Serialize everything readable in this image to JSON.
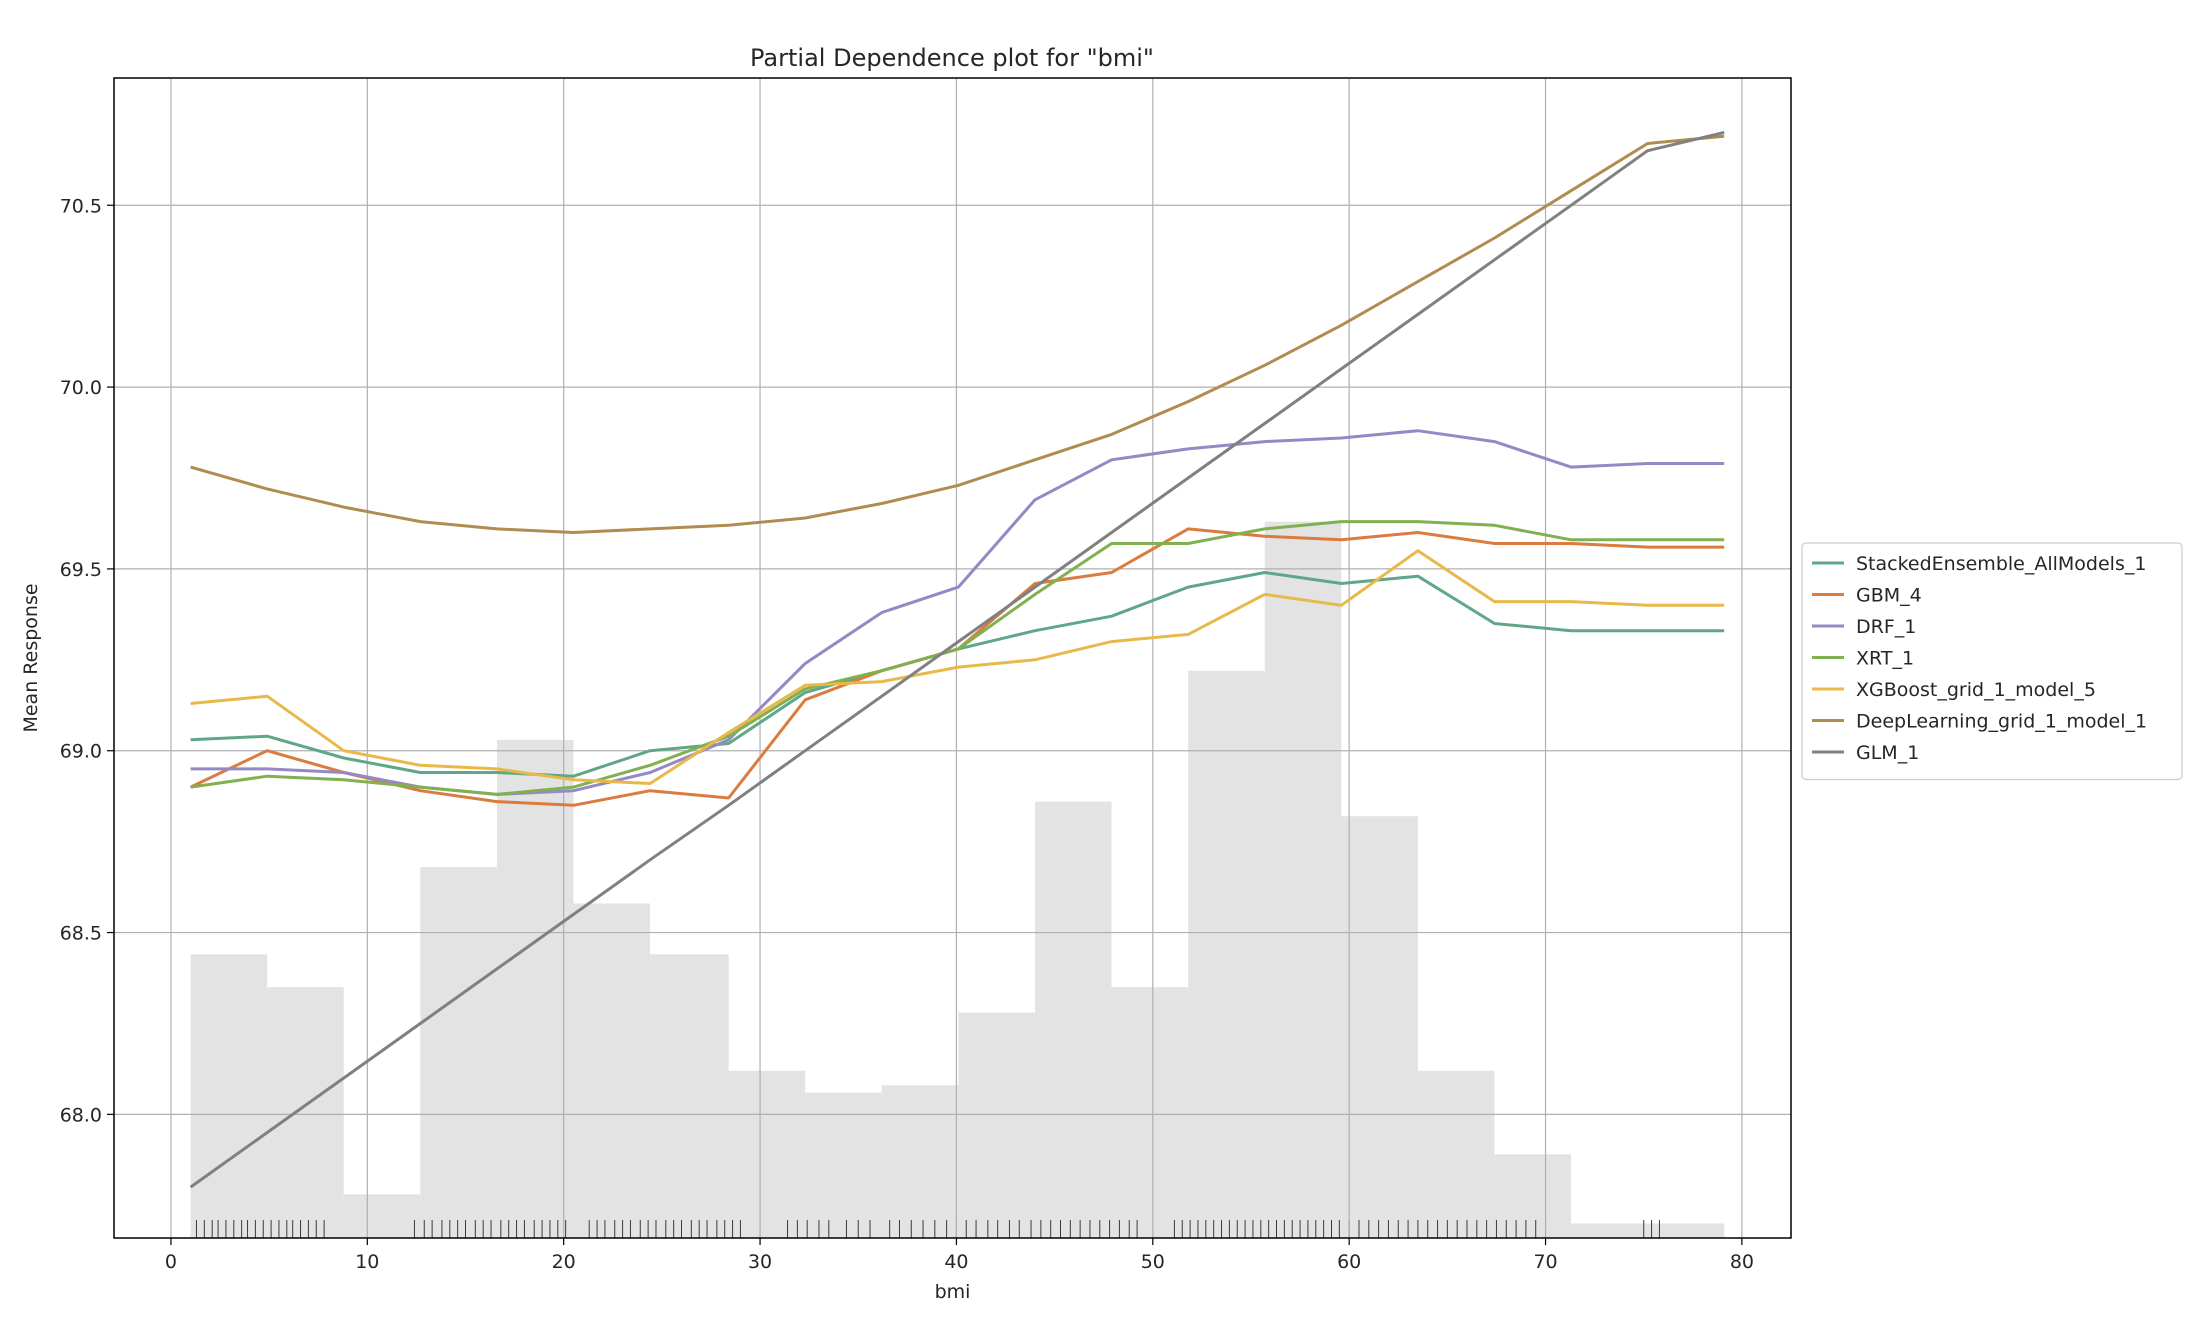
{
  "chart_data": {
    "type": "line",
    "title": "Partial Dependence plot for \"bmi\"",
    "xlabel": "bmi",
    "ylabel": "Mean Response",
    "xlim": [
      -2.9,
      82.5
    ],
    "ylim": [
      67.66,
      70.85
    ],
    "xticks": [
      "0",
      "10",
      "20",
      "30",
      "40",
      "50",
      "60",
      "70",
      "80"
    ],
    "yticks": [
      "68.0",
      "68.5",
      "69.0",
      "69.5",
      "70.0",
      "70.5"
    ],
    "grid": true,
    "legend_position": "right",
    "x": [
      1.0,
      4.9,
      8.8,
      12.7,
      16.6,
      20.5,
      24.4,
      28.4,
      32.3,
      36.2,
      40.1,
      44.0,
      47.9,
      51.8,
      55.7,
      59.6,
      63.5,
      67.4,
      71.3,
      75.2,
      79.1
    ],
    "series": [
      {
        "name": "StackedEnsemble_AllModels_1",
        "color": "#5fa787",
        "values": [
          69.03,
          69.04,
          68.98,
          68.94,
          68.94,
          68.93,
          69.0,
          69.02,
          69.16,
          69.22,
          69.28,
          69.33,
          69.37,
          69.45,
          69.49,
          69.46,
          69.48,
          69.35,
          69.33,
          69.33,
          69.33
        ]
      },
      {
        "name": "GBM_4",
        "color": "#db7b40",
        "values": [
          68.9,
          69.0,
          68.94,
          68.89,
          68.86,
          68.85,
          68.89,
          68.87,
          69.14,
          69.22,
          69.28,
          69.46,
          69.49,
          69.61,
          69.59,
          69.58,
          69.6,
          69.57,
          69.57,
          69.56,
          69.56
        ]
      },
      {
        "name": "DRF_1",
        "color": "#9489c4",
        "values": [
          68.95,
          68.95,
          68.94,
          68.9,
          68.88,
          68.89,
          68.94,
          69.03,
          69.24,
          69.38,
          69.45,
          69.69,
          69.8,
          69.83,
          69.85,
          69.86,
          69.88,
          69.85,
          69.78,
          69.79,
          69.79
        ]
      },
      {
        "name": "XRT_1",
        "color": "#80b050",
        "values": [
          68.9,
          68.93,
          68.92,
          68.9,
          68.88,
          68.9,
          68.96,
          69.04,
          69.17,
          69.22,
          69.28,
          69.43,
          69.57,
          69.57,
          69.61,
          69.63,
          69.63,
          69.62,
          69.58,
          69.58,
          69.58
        ]
      },
      {
        "name": "XGBoost_grid_1_model_5",
        "color": "#e8b94a",
        "values": [
          69.13,
          69.15,
          69.0,
          68.96,
          68.95,
          68.92,
          68.91,
          69.05,
          69.18,
          69.19,
          69.23,
          69.25,
          69.3,
          69.32,
          69.43,
          69.4,
          69.55,
          69.41,
          69.41,
          69.4,
          69.4
        ]
      },
      {
        "name": "DeepLearning_grid_1_model_1",
        "color": "#b08c50",
        "values": [
          69.78,
          69.72,
          69.67,
          69.63,
          69.61,
          69.6,
          69.61,
          69.62,
          69.64,
          69.68,
          69.73,
          69.8,
          69.87,
          69.96,
          70.06,
          70.17,
          70.29,
          70.41,
          70.54,
          70.67,
          70.69
        ]
      },
      {
        "name": "GLM_1",
        "color": "#808080",
        "values": [
          67.8,
          67.95,
          68.1,
          68.25,
          68.4,
          68.55,
          68.7,
          68.85,
          69.0,
          69.15,
          69.3,
          69.45,
          69.6,
          69.75,
          69.9,
          70.05,
          70.2,
          70.35,
          70.5,
          70.65,
          70.7
        ]
      }
    ],
    "histogram": {
      "color": "#e3e3e3",
      "bin_edges": [
        1.0,
        4.9,
        8.8,
        12.7,
        16.6,
        20.5,
        24.4,
        28.4,
        32.3,
        36.2,
        40.1,
        44.0,
        47.9,
        51.8,
        55.7,
        59.6,
        63.5,
        67.4,
        71.3,
        75.2,
        79.1
      ],
      "tops": [
        68.44,
        68.35,
        67.78,
        68.68,
        69.03,
        68.58,
        68.44,
        68.12,
        68.06,
        68.08,
        68.28,
        68.86,
        68.35,
        69.22,
        69.63,
        68.82,
        68.12,
        67.89,
        67.7,
        67.7
      ]
    },
    "rug": {
      "color": "#3a3a3a",
      "x": [
        1.3,
        1.7,
        2.1,
        2.4,
        2.8,
        3.2,
        3.6,
        3.9,
        4.3,
        4.7,
        5.1,
        5.5,
        5.9,
        6.2,
        6.6,
        7.0,
        7.4,
        7.8,
        12.4,
        12.9,
        13.3,
        13.8,
        14.2,
        14.6,
        15.0,
        15.5,
        15.9,
        16.3,
        16.8,
        17.2,
        17.6,
        18.0,
        18.5,
        18.9,
        19.3,
        19.7,
        20.1,
        21.3,
        21.7,
        22.1,
        22.6,
        23.0,
        23.4,
        23.9,
        24.3,
        24.7,
        25.2,
        25.6,
        26.0,
        26.5,
        26.9,
        27.3,
        27.8,
        28.2,
        28.6,
        29.0,
        31.4,
        31.9,
        32.4,
        33.0,
        33.5,
        34.4,
        35.0,
        35.6,
        36.6,
        37.1,
        37.7,
        38.3,
        38.9,
        39.5,
        40.0,
        40.5,
        41.0,
        41.6,
        42.1,
        42.7,
        43.2,
        43.8,
        44.3,
        44.8,
        45.3,
        45.8,
        46.3,
        46.8,
        47.3,
        47.8,
        48.3,
        48.8,
        49.2,
        51.1,
        51.5,
        51.9,
        52.3,
        52.7,
        53.1,
        53.5,
        53.9,
        54.3,
        54.7,
        55.1,
        55.5,
        55.9,
        56.3,
        56.7,
        57.1,
        57.5,
        57.9,
        58.3,
        58.7,
        59.1,
        59.5,
        60.0,
        60.5,
        61.0,
        61.5,
        62.0,
        62.5,
        63.0,
        63.5,
        64.0,
        64.5,
        65.0,
        65.5,
        66.0,
        66.5,
        67.0,
        67.5,
        68.0,
        68.5,
        69.0,
        69.5,
        70.0,
        75.0,
        75.4,
        75.8
      ]
    }
  }
}
